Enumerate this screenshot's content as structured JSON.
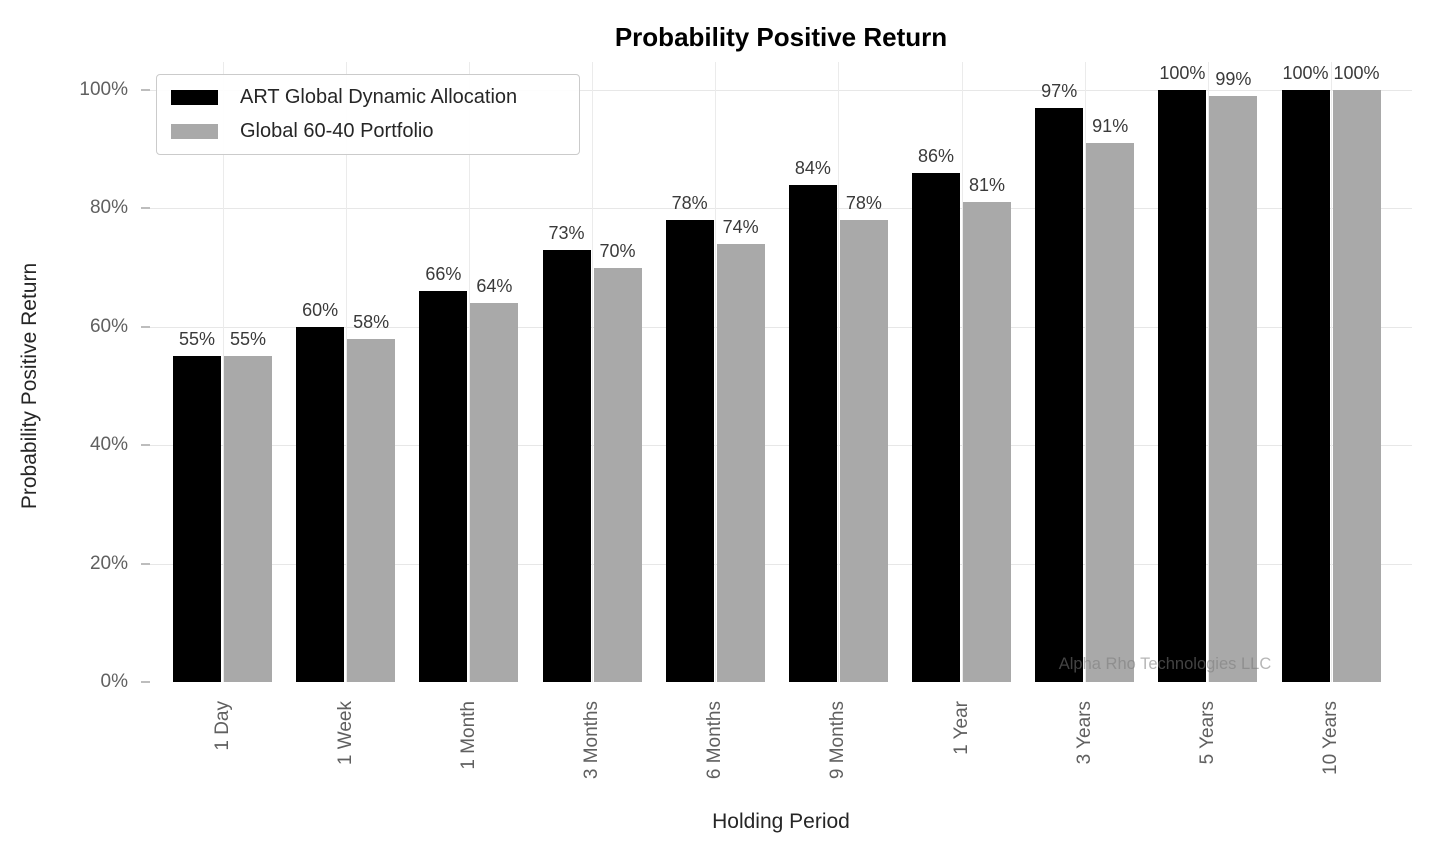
{
  "chart_data": {
    "type": "bar",
    "title": "Probability Positive Return",
    "xlabel": "Holding Period",
    "ylabel": "Probability Positive Return",
    "categories": [
      "1 Day",
      "1 Week",
      "1 Month",
      "3 Months",
      "6 Months",
      "9 Months",
      "1 Year",
      "3 Years",
      "5 Years",
      "10 Years"
    ],
    "series": [
      {
        "name": "ART Global Dynamic Allocation",
        "color": "#000000",
        "values": [
          55,
          60,
          66,
          73,
          78,
          84,
          86,
          97,
          100,
          100
        ],
        "labels": [
          "55%",
          "60%",
          "66%",
          "73%",
          "78%",
          "84%",
          "86%",
          "97%",
          "100%",
          "100%"
        ]
      },
      {
        "name": "Global 60-40 Portfolio",
        "color": "#a9a9a9",
        "values": [
          55,
          58,
          64,
          70,
          74,
          78,
          81,
          91,
          99,
          100
        ],
        "labels": [
          "55%",
          "58%",
          "64%",
          "70%",
          "74%",
          "78%",
          "81%",
          "91%",
          "99%",
          "100%"
        ]
      }
    ],
    "y_ticks": [
      "0%",
      "20%",
      "40%",
      "60%",
      "80%",
      "100%"
    ],
    "ylim": [
      0,
      100
    ],
    "grid": true,
    "legend_position": "upper left",
    "watermark": "Alpha Rho Technologies LLC"
  }
}
